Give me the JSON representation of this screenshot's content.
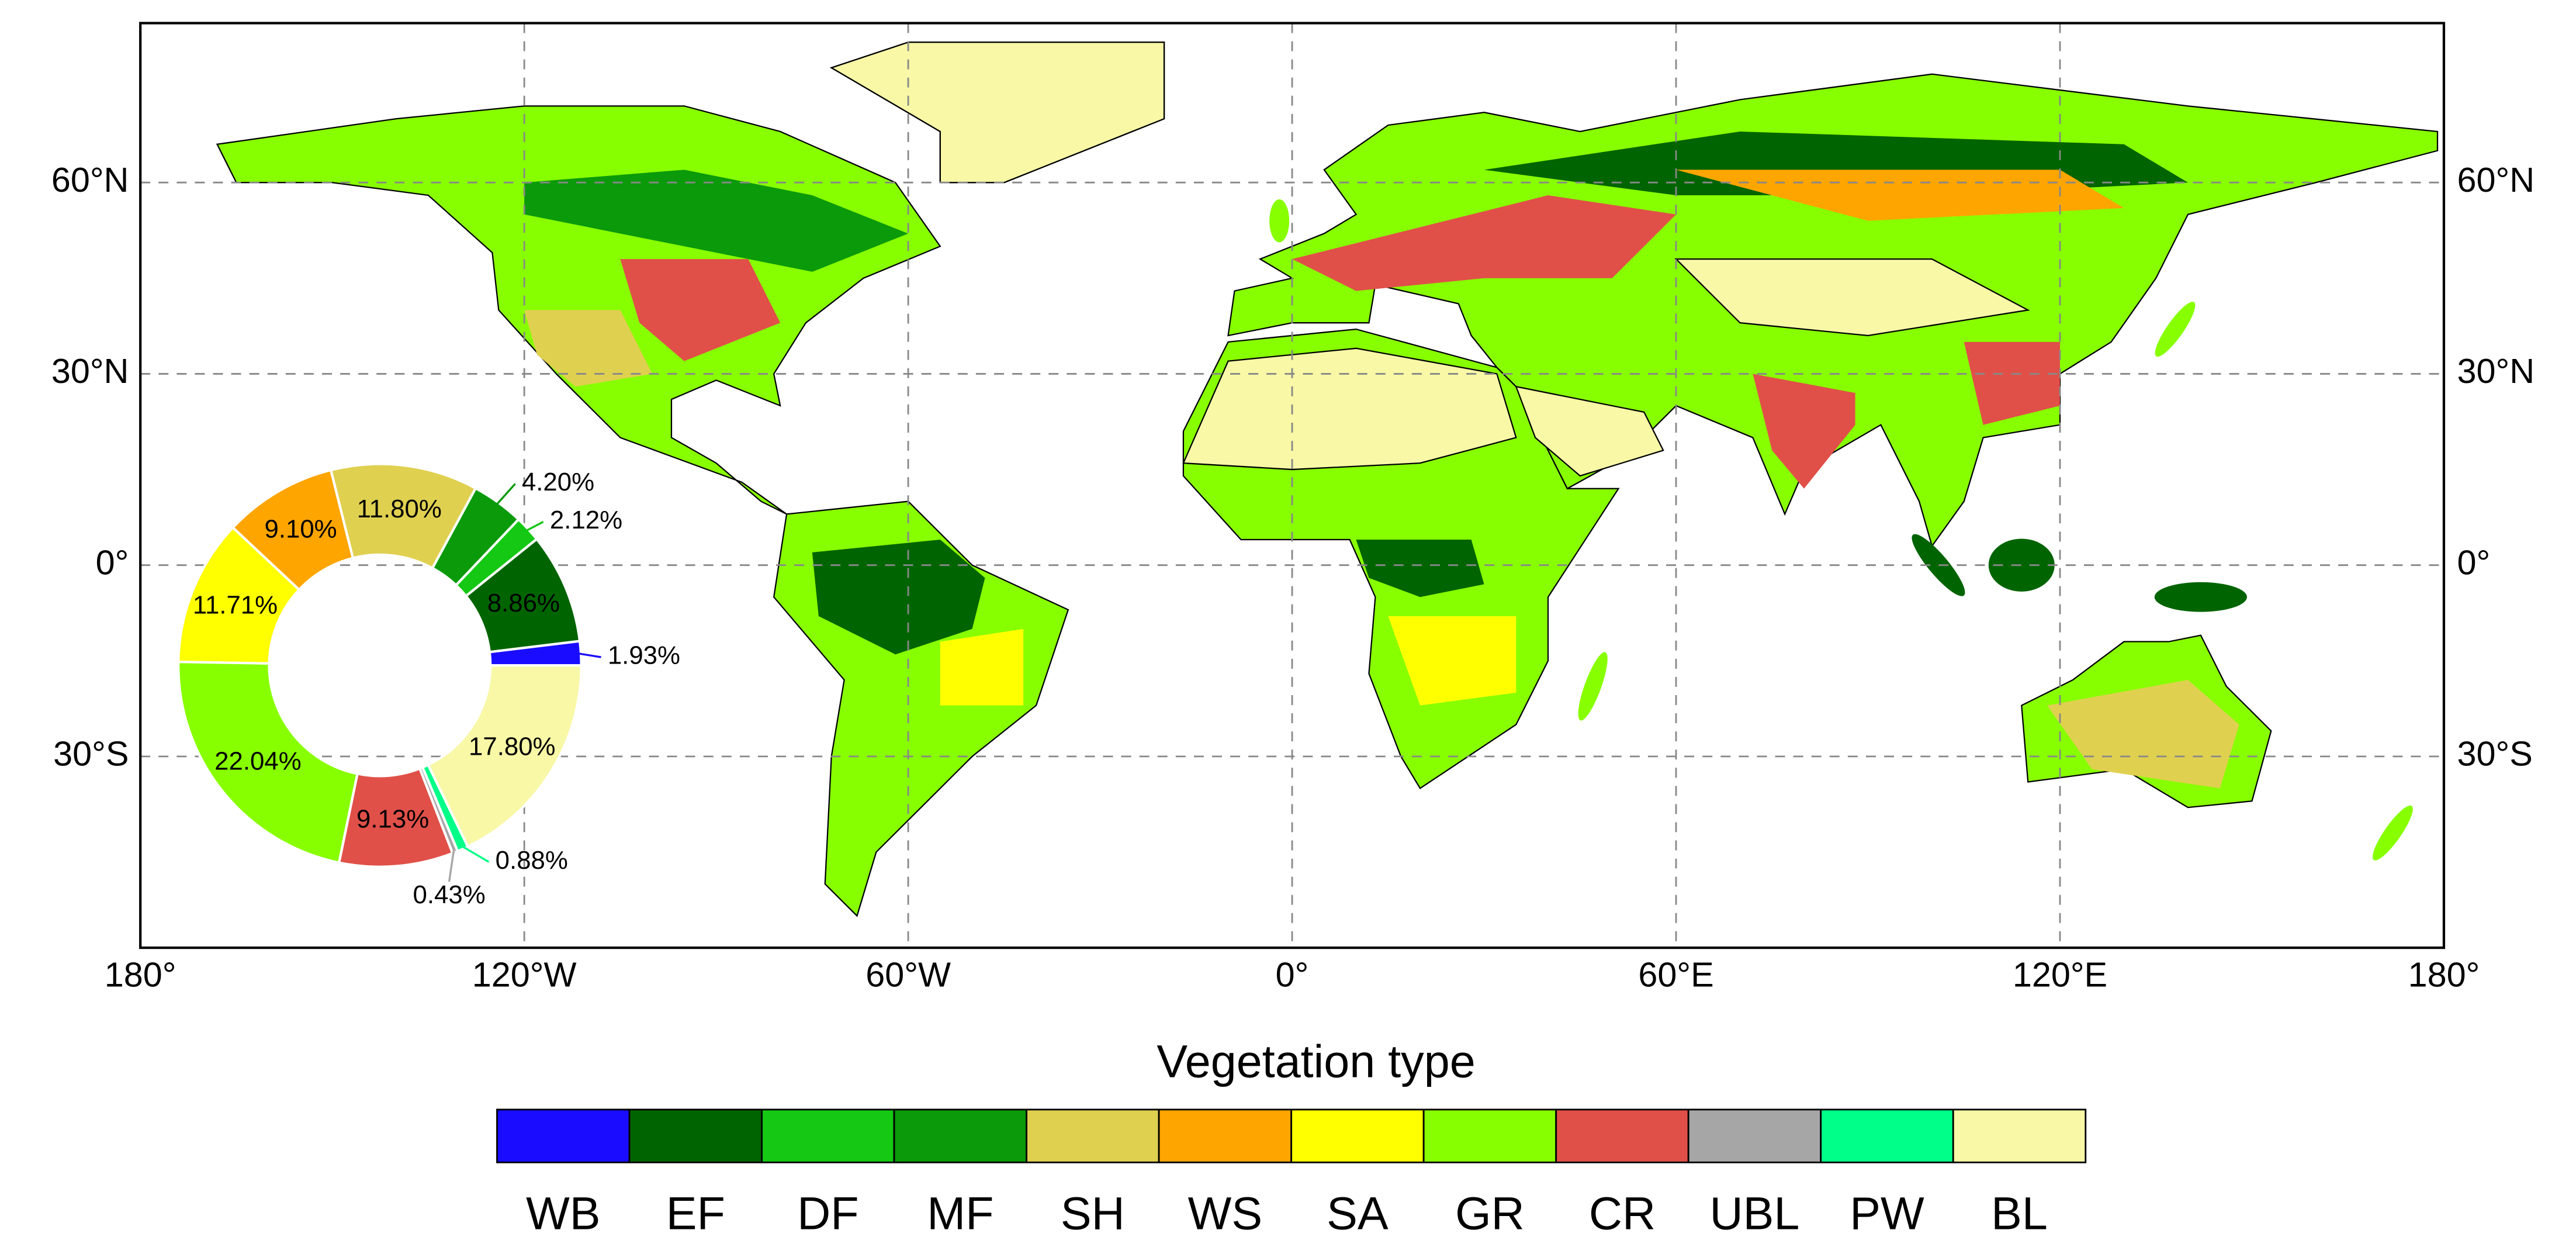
{
  "map": {
    "xlim": [
      -180,
      180
    ],
    "ylim": [
      -60,
      85
    ],
    "xticks": [
      {
        "value": -180,
        "label": "180°"
      },
      {
        "value": -120,
        "label": "120°W"
      },
      {
        "value": -60,
        "label": "60°W"
      },
      {
        "value": 0,
        "label": "0°"
      },
      {
        "value": 60,
        "label": "60°E"
      },
      {
        "value": 120,
        "label": "120°E"
      },
      {
        "value": 180,
        "label": "180°"
      }
    ],
    "yticks": [
      {
        "value": -30,
        "label": "30°S"
      },
      {
        "value": 0,
        "label": "0°"
      },
      {
        "value": 30,
        "label": "30°N"
      },
      {
        "value": 60,
        "label": "60°N"
      }
    ],
    "grid": true
  },
  "chart_data": {
    "type": "donut",
    "legend_title": "Vegetation type",
    "categories": [
      "WB",
      "EF",
      "DF",
      "MF",
      "SH",
      "WS",
      "SA",
      "GR",
      "CR",
      "UBL",
      "PW",
      "BL"
    ],
    "colors": [
      "#1a0dff",
      "#006400",
      "#14c814",
      "#0a9a0a",
      "#e0d050",
      "#ffa500",
      "#ffff00",
      "#88ff00",
      "#e05048",
      "#a6a6a6",
      "#00ff88",
      "#f8f8a6"
    ],
    "values": [
      1.93,
      8.86,
      2.12,
      4.2,
      11.8,
      9.1,
      11.71,
      22.04,
      9.13,
      0.43,
      0.88,
      17.8
    ],
    "value_labels": [
      "1.93%",
      "8.86%",
      "2.12%",
      "4.20%",
      "11.80%",
      "9.10%",
      "11.71%",
      "22.04%",
      "9.13%",
      "0.43%",
      "0.88%",
      "17.80%"
    ]
  }
}
